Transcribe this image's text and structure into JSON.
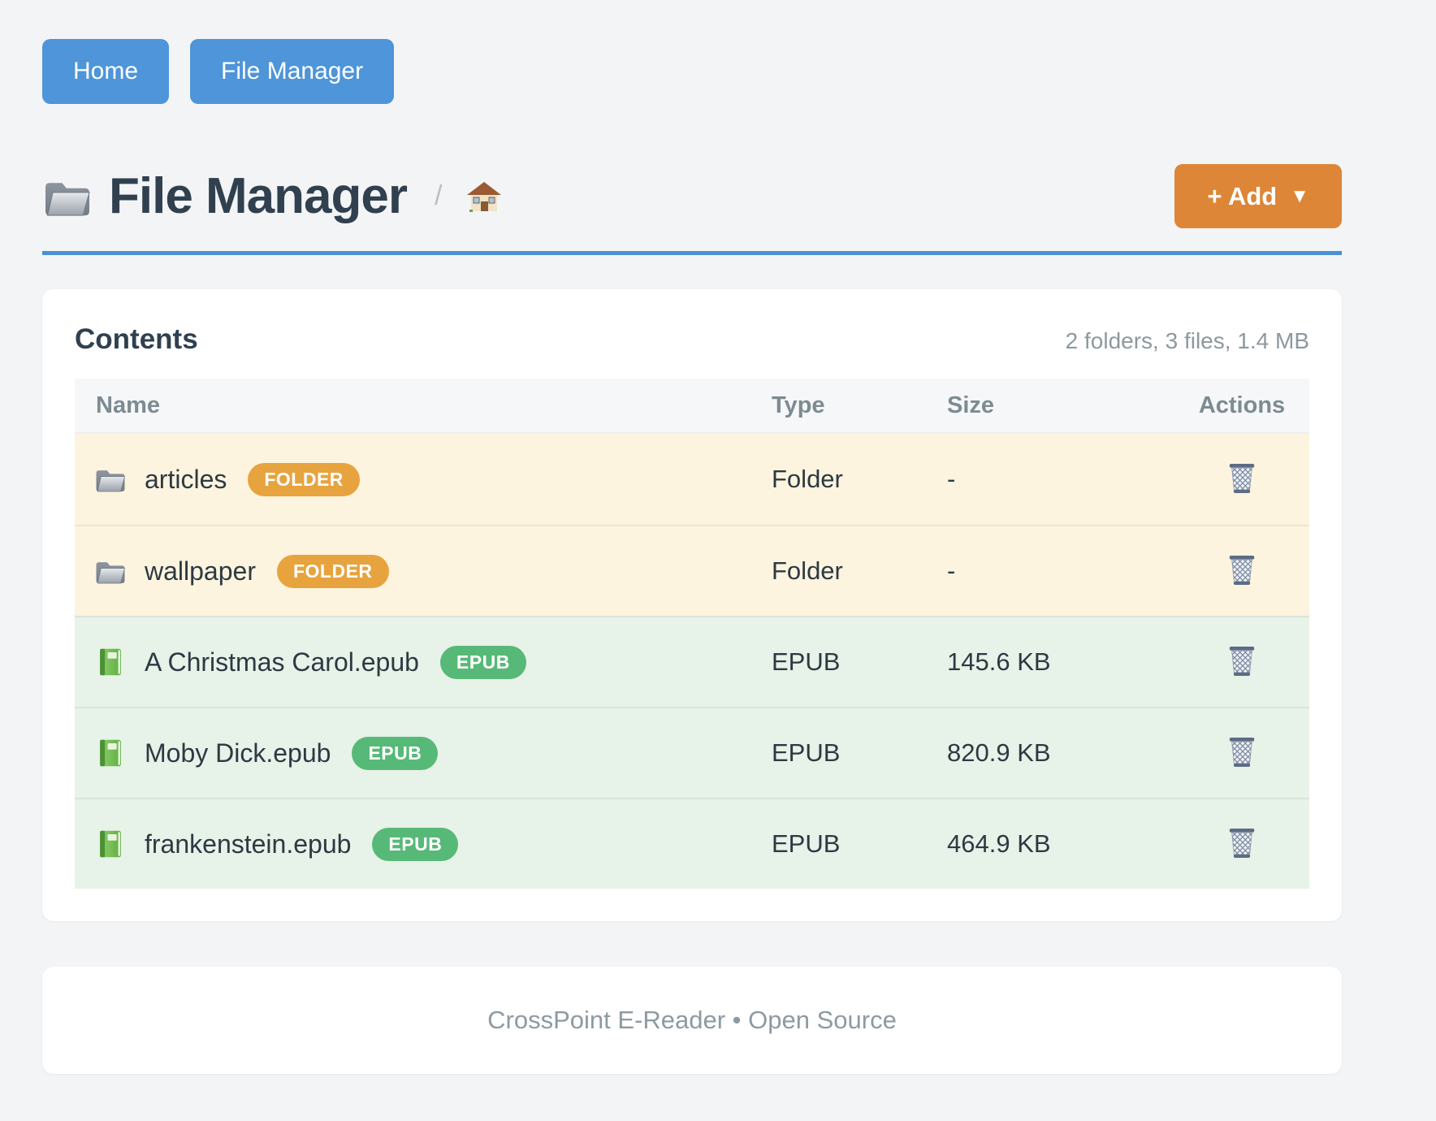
{
  "nav": {
    "buttons": [
      {
        "label": "Home"
      },
      {
        "label": "File Manager"
      }
    ]
  },
  "header": {
    "title": "File Manager",
    "title_icon": "open-folder",
    "breadcrumb_separator": "/",
    "breadcrumb_home_icon": "house",
    "add_button_label": "+ Add",
    "add_button_caret": "▼"
  },
  "contents_card": {
    "title": "Contents",
    "summary": "2 folders, 3 files, 1.4 MB",
    "table": {
      "columns": [
        "Name",
        "Type",
        "Size",
        "Actions"
      ],
      "rows": [
        {
          "name": "articles",
          "badge": "FOLDER",
          "kind": "folder",
          "type": "Folder",
          "size": "-",
          "action_icon": "wastebasket"
        },
        {
          "name": "wallpaper",
          "badge": "FOLDER",
          "kind": "folder",
          "type": "Folder",
          "size": "-",
          "action_icon": "wastebasket"
        },
        {
          "name": "A Christmas Carol.epub",
          "badge": "EPUB",
          "kind": "epub",
          "type": "EPUB",
          "size": "145.6 KB",
          "action_icon": "wastebasket"
        },
        {
          "name": "Moby Dick.epub",
          "badge": "EPUB",
          "kind": "epub",
          "type": "EPUB",
          "size": "820.9 KB",
          "action_icon": "wastebasket"
        },
        {
          "name": "frankenstein.epub",
          "badge": "EPUB",
          "kind": "epub",
          "type": "EPUB",
          "size": "464.9 KB",
          "action_icon": "wastebasket"
        }
      ]
    }
  },
  "footer": {
    "text": "CrossPoint E-Reader • Open Source"
  },
  "icons": {
    "folder_row": "gray-open-folder",
    "epub_row": "green-book",
    "delete_action": "wastebasket",
    "breadcrumb": "house"
  },
  "colors": {
    "nav_blue": "#4e95d9",
    "add_orange": "#dd8637",
    "rule_blue": "#4a90d5",
    "badge_folder": "#e7a33e",
    "badge_epub": "#57b977",
    "row_folder_bg": "#fcf4de",
    "row_epub_bg": "#e7f2e8",
    "title_slate": "#30404f"
  }
}
